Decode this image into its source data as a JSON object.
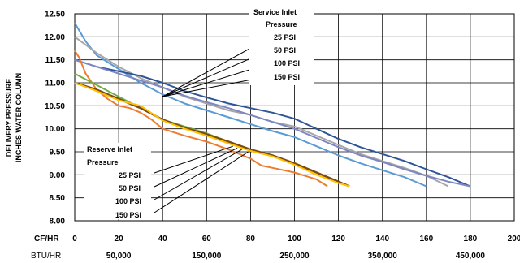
{
  "chart_data": {
    "type": "line",
    "ylabel_line1": "DELIVERY PRESSURE",
    "ylabel_line2": "INCHES WATER COLUMN",
    "ylim": [
      8.0,
      12.5
    ],
    "y_ticks": [
      "8.00",
      "8.50",
      "9.00",
      "9.50",
      "10.00",
      "10.50",
      "11.00",
      "11.50",
      "12.00",
      "12.50"
    ],
    "xlim": [
      0,
      200
    ],
    "x_ticks": [
      "0",
      "20",
      "40",
      "60",
      "80",
      "100",
      "120",
      "140",
      "160",
      "180",
      "200"
    ],
    "x_axis_label": "CF/HR",
    "btu_axis_label": "BTU/HR",
    "btu_ticks": [
      {
        "x": 20,
        "label": "50,000"
      },
      {
        "x": 60,
        "label": "150,000"
      },
      {
        "x": 100,
        "label": "250,000"
      },
      {
        "x": 140,
        "label": "350,000"
      },
      {
        "x": 180,
        "label": "450,000"
      }
    ],
    "grid": true,
    "service_group": {
      "title_line1": "Service Inlet",
      "title_line2": "Pressure",
      "entries": [
        "25 PSI",
        "50 PSI",
        "100 PSI",
        "150 PSI"
      ]
    },
    "reserve_group": {
      "title_line1": "Reserve Inlet",
      "title_line2": "Pressure",
      "entries": [
        "25 PSI",
        "50 PSI",
        "100 PSI",
        "150 PSI"
      ]
    },
    "series": [
      {
        "group": "service",
        "color": "#5b9bd5",
        "width": 2,
        "points": [
          [
            0,
            12.3
          ],
          [
            5,
            11.9
          ],
          [
            10,
            11.6
          ],
          [
            20,
            11.3
          ],
          [
            30,
            11.0
          ],
          [
            40,
            10.75
          ],
          [
            50,
            10.55
          ],
          [
            60,
            10.4
          ],
          [
            70,
            10.25
          ],
          [
            80,
            10.1
          ],
          [
            90,
            9.95
          ],
          [
            100,
            9.82
          ],
          [
            110,
            9.62
          ],
          [
            120,
            9.42
          ],
          [
            130,
            9.25
          ],
          [
            140,
            9.1
          ],
          [
            150,
            8.95
          ],
          [
            160,
            8.75
          ]
        ]
      },
      {
        "group": "service",
        "color": "#a6a6a6",
        "width": 2,
        "points": [
          [
            0,
            12.0
          ],
          [
            10,
            11.65
          ],
          [
            20,
            11.35
          ],
          [
            30,
            11.1
          ],
          [
            40,
            10.9
          ],
          [
            50,
            10.7
          ],
          [
            60,
            10.55
          ],
          [
            70,
            10.4
          ],
          [
            80,
            10.3
          ],
          [
            90,
            10.15
          ],
          [
            100,
            10.05
          ],
          [
            110,
            9.85
          ],
          [
            120,
            9.65
          ],
          [
            130,
            9.45
          ],
          [
            140,
            9.3
          ],
          [
            150,
            9.15
          ],
          [
            160,
            8.98
          ],
          [
            170,
            8.75
          ]
        ]
      },
      {
        "group": "service",
        "color": "#2e5597",
        "width": 2,
        "points": [
          [
            0,
            11.5
          ],
          [
            10,
            11.35
          ],
          [
            20,
            11.25
          ],
          [
            30,
            11.15
          ],
          [
            40,
            11.0
          ],
          [
            50,
            10.82
          ],
          [
            60,
            10.68
          ],
          [
            70,
            10.55
          ],
          [
            80,
            10.45
          ],
          [
            90,
            10.35
          ],
          [
            100,
            10.22
          ],
          [
            110,
            10.0
          ],
          [
            120,
            9.78
          ],
          [
            130,
            9.6
          ],
          [
            140,
            9.45
          ],
          [
            150,
            9.3
          ],
          [
            160,
            9.12
          ],
          [
            170,
            8.95
          ],
          [
            180,
            8.75
          ]
        ]
      },
      {
        "group": "service",
        "color": "#7f86c4",
        "width": 2,
        "points": [
          [
            0,
            11.5
          ],
          [
            10,
            11.35
          ],
          [
            20,
            11.2
          ],
          [
            30,
            11.05
          ],
          [
            40,
            10.9
          ],
          [
            50,
            10.72
          ],
          [
            60,
            10.58
          ],
          [
            70,
            10.45
          ],
          [
            80,
            10.3
          ],
          [
            90,
            10.15
          ],
          [
            100,
            10.0
          ],
          [
            110,
            9.8
          ],
          [
            120,
            9.6
          ],
          [
            130,
            9.42
          ],
          [
            140,
            9.28
          ],
          [
            150,
            9.12
          ],
          [
            160,
            8.98
          ],
          [
            170,
            8.85
          ],
          [
            180,
            8.75
          ]
        ]
      },
      {
        "group": "reserve",
        "color": "#ed7d31",
        "width": 2,
        "points": [
          [
            0,
            11.7
          ],
          [
            2,
            11.55
          ],
          [
            5,
            11.2
          ],
          [
            10,
            10.85
          ],
          [
            15,
            10.65
          ],
          [
            20,
            10.5
          ],
          [
            25,
            10.45
          ],
          [
            30,
            10.35
          ],
          [
            35,
            10.2
          ],
          [
            40,
            10.0
          ],
          [
            50,
            9.85
          ],
          [
            60,
            9.72
          ],
          [
            70,
            9.55
          ],
          [
            80,
            9.35
          ],
          [
            85,
            9.2
          ],
          [
            90,
            9.15
          ],
          [
            100,
            9.05
          ],
          [
            110,
            8.9
          ],
          [
            115,
            8.75
          ]
        ]
      },
      {
        "group": "reserve",
        "color": "#70ad47",
        "width": 2,
        "points": [
          [
            0,
            11.2
          ],
          [
            10,
            10.95
          ],
          [
            20,
            10.7
          ],
          [
            30,
            10.45
          ],
          [
            40,
            10.2
          ],
          [
            50,
            10.05
          ],
          [
            60,
            9.9
          ],
          [
            70,
            9.72
          ],
          [
            80,
            9.55
          ],
          [
            90,
            9.42
          ],
          [
            100,
            9.25
          ],
          [
            110,
            9.05
          ],
          [
            120,
            8.85
          ],
          [
            125,
            8.75
          ]
        ]
      },
      {
        "group": "reserve",
        "color": "#7b4a12",
        "width": 2.5,
        "points": [
          [
            0,
            11.0
          ],
          [
            10,
            10.85
          ],
          [
            20,
            10.65
          ],
          [
            30,
            10.45
          ],
          [
            40,
            10.2
          ],
          [
            50,
            10.02
          ],
          [
            60,
            9.88
          ],
          [
            70,
            9.72
          ],
          [
            80,
            9.55
          ],
          [
            90,
            9.42
          ],
          [
            100,
            9.25
          ],
          [
            110,
            9.05
          ],
          [
            120,
            8.85
          ],
          [
            125,
            8.75
          ]
        ]
      },
      {
        "group": "reserve",
        "color": "#ffc000",
        "width": 2,
        "points": [
          [
            0,
            11.0
          ],
          [
            10,
            10.82
          ],
          [
            20,
            10.62
          ],
          [
            30,
            10.5
          ],
          [
            40,
            10.18
          ],
          [
            50,
            10.0
          ],
          [
            60,
            9.85
          ],
          [
            70,
            9.68
          ],
          [
            80,
            9.52
          ],
          [
            90,
            9.4
          ],
          [
            100,
            9.22
          ],
          [
            110,
            9.0
          ],
          [
            120,
            8.82
          ],
          [
            125,
            8.75
          ]
        ]
      }
    ]
  }
}
